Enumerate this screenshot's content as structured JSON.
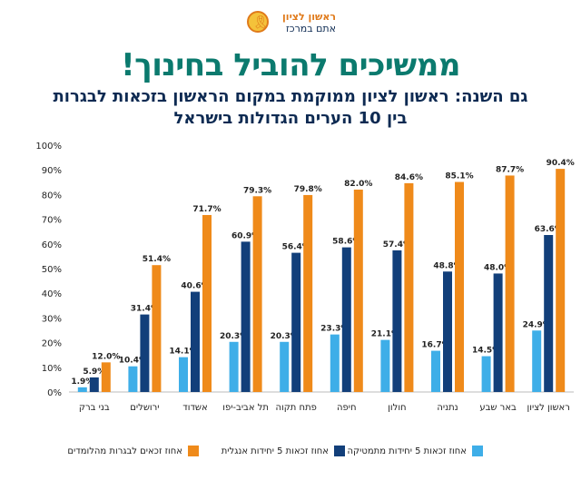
{
  "logo": {
    "line1": "ראשון לציון",
    "line2": "אתם במרכז"
  },
  "chart_data": {
    "type": "bar",
    "title": "ממשיכים להוביל בחינוך!",
    "subtitle_lines": [
      "גם השנה: ראשון לציון ממוקמת במקום הראשון בזכאות לבגרות",
      "בין 10 הערים הגדולות בישראל"
    ],
    "categories": [
      "בני ברק",
      "ירושלים",
      "אשדוד",
      "תל אביב-יפו",
      "פתח תקוה",
      "חיפה",
      "חולון",
      "נתניה",
      "באר שבע",
      "ראשון לציון"
    ],
    "series": [
      {
        "name": "אחוז זכאות 5 יחידות מתמטיקה",
        "color": "#3eaee8",
        "values": [
          1.9,
          10.4,
          14.1,
          20.3,
          20.3,
          23.3,
          21.1,
          16.7,
          14.5,
          24.9
        ],
        "labels": [
          "1.9%",
          "10.4%",
          "14.1%",
          "20.3%",
          "20.3%",
          "23.3%",
          "21.1%",
          "16.7%",
          "14.5%",
          "24.9%"
        ]
      },
      {
        "name": "אחוז זכאות 5 יחידות אנגלית",
        "color": "#123f7a",
        "values": [
          5.9,
          31.4,
          40.6,
          60.9,
          56.4,
          58.6,
          57.4,
          48.8,
          48.0,
          63.6
        ],
        "labels": [
          "5.9%",
          "31.4%",
          "40.6%",
          "60.9%",
          "56.4%",
          "58.6%",
          "57.4%",
          "48.8%",
          "48.0%",
          "63.6%"
        ]
      },
      {
        "name": "אחוז זכאים לבגרות מהלומדים",
        "color": "#ef8a1a",
        "values": [
          12.0,
          51.4,
          71.7,
          79.3,
          79.8,
          82.0,
          84.6,
          85.1,
          87.7,
          90.4
        ],
        "labels": [
          "12.0%",
          "51.4%",
          "71.7%",
          "79.3%",
          "79.8%",
          "82.0%",
          "84.6%",
          "85.1%",
          "87.7%",
          "90.4%"
        ]
      }
    ],
    "ylim": [
      0,
      100
    ],
    "yticks": [
      "0%",
      "10%",
      "20%",
      "30%",
      "40%",
      "50%",
      "60%",
      "70%",
      "80%",
      "90%",
      "100%"
    ],
    "legend_position": "bottom",
    "grid": false
  }
}
